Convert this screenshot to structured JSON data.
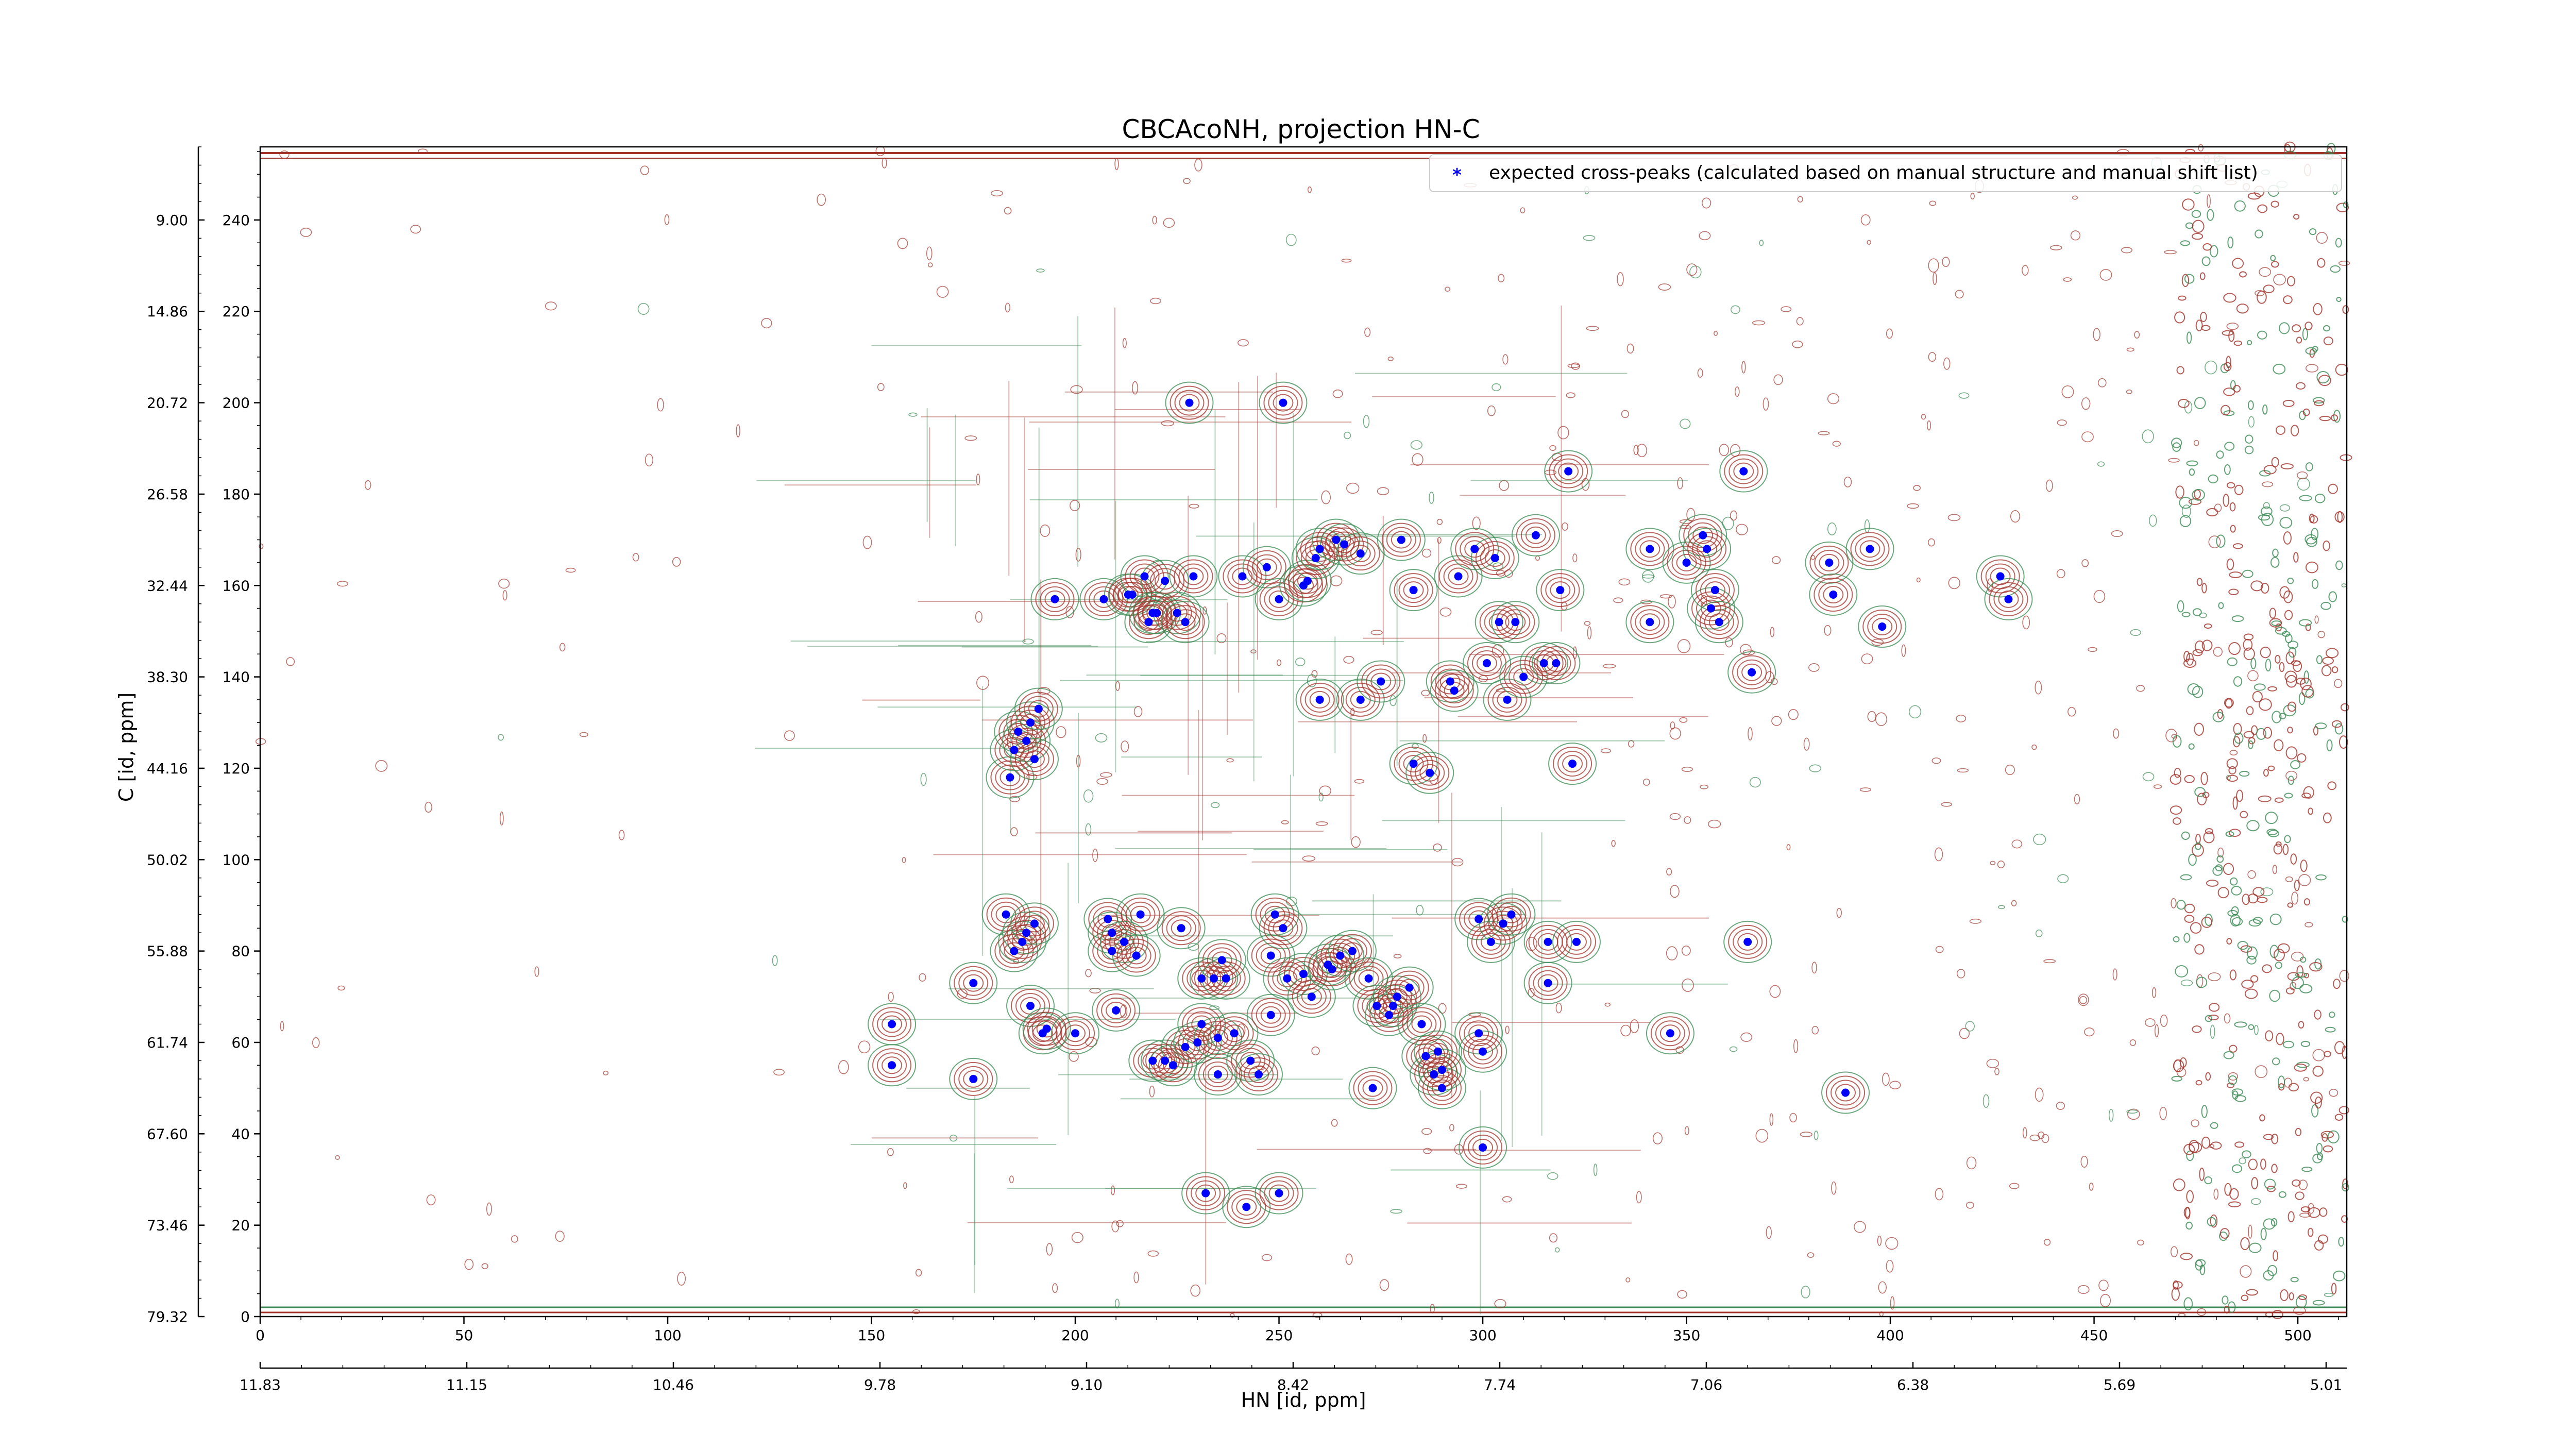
{
  "chart_data": {
    "type": "scatter",
    "title": "CBCAcoNH, projection HN-C",
    "xlabel": "HN [id, ppm]",
    "ylabel": "C [id, ppm]",
    "x_index_ticks": [
      "0",
      "50",
      "100",
      "150",
      "200",
      "250",
      "300",
      "350",
      "400",
      "450",
      "500"
    ],
    "x_index_range": [
      0,
      512
    ],
    "x_ppm_ticks": [
      "11.83",
      "11.15",
      "10.46",
      "9.78",
      "9.10",
      "8.42",
      "7.74",
      "7.06",
      "6.38",
      "5.69",
      "5.01"
    ],
    "y_index_ticks": [
      "0",
      "20",
      "40",
      "60",
      "80",
      "100",
      "120",
      "140",
      "160",
      "180",
      "200",
      "220",
      "240"
    ],
    "y_index_range": [
      0,
      256
    ],
    "y_ppm_ticks": [
      "79.32",
      "73.46",
      "67.60",
      "61.74",
      "55.88",
      "50.02",
      "44.16",
      "38.30",
      "32.44",
      "26.58",
      "20.72",
      "14.86",
      "9.00"
    ],
    "legend": {
      "placement": "top-right",
      "entries": [
        "expected cross-peaks (calculated based on manual structure and manual shift list)"
      ]
    },
    "colors": {
      "peaks": "#0000ff",
      "contour_positive": "#a0332a",
      "contour_negative": "#3a8a52"
    },
    "series": [
      {
        "name": "expected cross-peaks (calculated based on manual structure and manual shift list)",
        "points": [
          [
            155,
            64
          ],
          [
            155,
            55
          ],
          [
            175,
            73
          ],
          [
            175,
            52
          ],
          [
            183,
            88
          ],
          [
            185,
            80
          ],
          [
            187,
            82
          ],
          [
            188,
            84
          ],
          [
            189,
            68
          ],
          [
            190,
            86
          ],
          [
            192,
            62
          ],
          [
            193,
            63
          ],
          [
            200,
            62
          ],
          [
            184,
            118
          ],
          [
            185,
            124
          ],
          [
            186,
            128
          ],
          [
            188,
            126
          ],
          [
            189,
            130
          ],
          [
            190,
            122
          ],
          [
            191,
            133
          ],
          [
            195,
            157
          ],
          [
            207,
            157
          ],
          [
            208,
            87
          ],
          [
            209,
            80
          ],
          [
            209,
            84
          ],
          [
            210,
            67
          ],
          [
            212,
            82
          ],
          [
            213,
            158
          ],
          [
            214,
            158
          ],
          [
            215,
            79
          ],
          [
            216,
            88
          ],
          [
            217,
            162
          ],
          [
            218,
            152
          ],
          [
            219,
            56
          ],
          [
            219,
            154
          ],
          [
            220,
            154
          ],
          [
            222,
            56
          ],
          [
            222,
            161
          ],
          [
            224,
            55
          ],
          [
            225,
            154
          ],
          [
            226,
            85
          ],
          [
            227,
            59
          ],
          [
            227,
            152
          ],
          [
            228,
            200
          ],
          [
            229,
            162
          ],
          [
            230,
            60
          ],
          [
            231,
            74
          ],
          [
            231,
            64
          ],
          [
            232,
            27
          ],
          [
            234,
            74
          ],
          [
            235,
            53
          ],
          [
            235,
            61
          ],
          [
            236,
            78
          ],
          [
            237,
            74
          ],
          [
            239,
            62
          ],
          [
            241,
            162
          ],
          [
            242,
            24
          ],
          [
            243,
            56
          ],
          [
            245,
            53
          ],
          [
            247,
            164
          ],
          [
            248,
            66
          ],
          [
            248,
            79
          ],
          [
            249,
            88
          ],
          [
            250,
            27
          ],
          [
            250,
            157
          ],
          [
            251,
            85
          ],
          [
            251,
            200
          ],
          [
            252,
            74
          ],
          [
            256,
            160
          ],
          [
            256,
            75
          ],
          [
            257,
            161
          ],
          [
            258,
            70
          ],
          [
            259,
            166
          ],
          [
            260,
            168
          ],
          [
            260,
            135
          ],
          [
            262,
            77
          ],
          [
            263,
            76
          ],
          [
            264,
            170
          ],
          [
            265,
            79
          ],
          [
            266,
            169
          ],
          [
            268,
            80
          ],
          [
            270,
            167
          ],
          [
            270,
            135
          ],
          [
            272,
            74
          ],
          [
            273,
            50
          ],
          [
            274,
            68
          ],
          [
            275,
            139
          ],
          [
            277,
            66
          ],
          [
            278,
            68
          ],
          [
            279,
            70
          ],
          [
            280,
            170
          ],
          [
            282,
            72
          ],
          [
            283,
            159
          ],
          [
            283,
            121
          ],
          [
            285,
            64
          ],
          [
            286,
            57
          ],
          [
            287,
            119
          ],
          [
            288,
            53
          ],
          [
            289,
            58
          ],
          [
            290,
            50
          ],
          [
            290,
            54
          ],
          [
            292,
            139
          ],
          [
            293,
            137
          ],
          [
            294,
            162
          ],
          [
            298,
            168
          ],
          [
            299,
            87
          ],
          [
            299,
            62
          ],
          [
            300,
            37
          ],
          [
            300,
            58
          ],
          [
            301,
            143
          ],
          [
            302,
            82
          ],
          [
            303,
            166
          ],
          [
            304,
            152
          ],
          [
            305,
            86
          ],
          [
            306,
            135
          ],
          [
            307,
            88
          ],
          [
            308,
            152
          ],
          [
            310,
            140
          ],
          [
            313,
            171
          ],
          [
            315,
            143
          ],
          [
            316,
            73
          ],
          [
            316,
            82
          ],
          [
            318,
            143
          ],
          [
            319,
            159
          ],
          [
            321,
            185
          ],
          [
            322,
            121
          ],
          [
            323,
            82
          ],
          [
            341,
            168
          ],
          [
            341,
            152
          ],
          [
            346,
            62
          ],
          [
            350,
            165
          ],
          [
            354,
            171
          ],
          [
            355,
            168
          ],
          [
            356,
            155
          ],
          [
            357,
            159
          ],
          [
            358,
            152
          ],
          [
            364,
            185
          ],
          [
            365,
            82
          ],
          [
            366,
            141
          ],
          [
            385,
            165
          ],
          [
            386,
            158
          ],
          [
            389,
            49
          ],
          [
            395,
            168
          ],
          [
            398,
            151
          ],
          [
            427,
            162
          ],
          [
            429,
            157
          ]
        ]
      }
    ]
  }
}
